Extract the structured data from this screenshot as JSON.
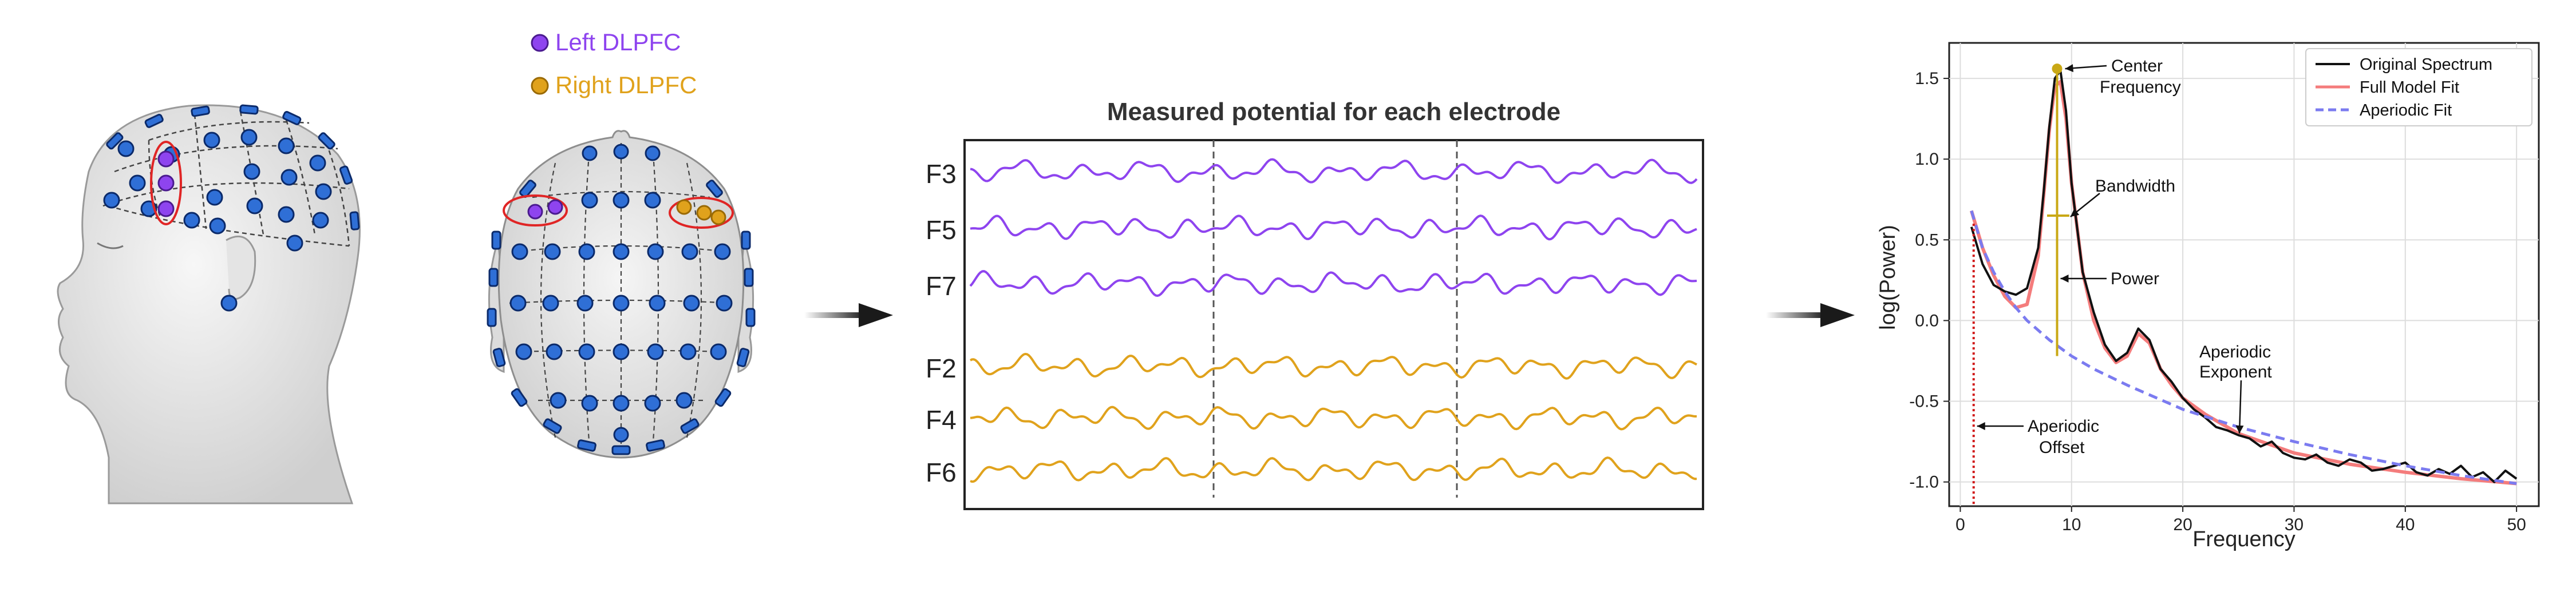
{
  "legend": {
    "left_label": "Left DLPFC",
    "right_label": "Right DLPFC",
    "left_color": "#8e44ef",
    "right_color": "#e0a21c"
  },
  "eeg": {
    "title": "Measured potential for each electrode",
    "channels": [
      {
        "name": "F3",
        "group": "left"
      },
      {
        "name": "F5",
        "group": "left"
      },
      {
        "name": "F7",
        "group": "left"
      },
      {
        "name": "F2",
        "group": "right"
      },
      {
        "name": "F4",
        "group": "right"
      },
      {
        "name": "F6",
        "group": "right"
      }
    ]
  },
  "spectrum": {
    "xlabel": "Frequency",
    "ylabel": "log(Power)",
    "legend": [
      "Original Spectrum",
      "Full Model Fit",
      "Aperiodic Fit"
    ],
    "annotations": {
      "center_frequency": "Center\nFrequency",
      "bandwidth": "Bandwidth",
      "power": "Power",
      "aperiodic_exponent": "Aperiodic\nExponent",
      "aperiodic_offset": "Aperiodic\nOffset"
    }
  },
  "chart_data": {
    "type": "line",
    "xlabel": "Frequency",
    "ylabel": "log(Power)",
    "xlim": [
      -1,
      52
    ],
    "ylim": [
      -1.15,
      1.72
    ],
    "x_ticks": [
      0,
      10,
      20,
      30,
      40,
      50
    ],
    "y_ticks": [
      -1.0,
      -0.5,
      0.0,
      0.5,
      1.0,
      1.5
    ],
    "grid": true,
    "legend_position": "top-right",
    "series": [
      {
        "name": "Original Spectrum",
        "color": "#111111",
        "x": [
          1,
          2,
          3,
          4,
          5,
          6,
          7,
          7.5,
          8,
          8.5,
          9,
          9.5,
          10,
          11,
          12,
          13,
          14,
          15,
          16,
          17,
          18,
          19,
          20,
          21,
          22,
          23,
          24,
          25,
          26,
          27,
          28,
          29,
          30,
          31,
          32,
          33,
          34,
          35,
          36,
          37,
          38,
          39,
          40,
          41,
          42,
          43,
          44,
          45,
          46,
          47,
          48,
          49,
          50
        ],
        "values": [
          0.58,
          0.35,
          0.22,
          0.18,
          0.16,
          0.2,
          0.45,
          0.8,
          1.2,
          1.5,
          1.55,
          1.3,
          0.85,
          0.3,
          0.05,
          -0.15,
          -0.25,
          -0.2,
          -0.05,
          -0.12,
          -0.3,
          -0.38,
          -0.48,
          -0.55,
          -0.6,
          -0.66,
          -0.68,
          -0.71,
          -0.73,
          -0.78,
          -0.75,
          -0.82,
          -0.85,
          -0.86,
          -0.83,
          -0.88,
          -0.9,
          -0.86,
          -0.88,
          -0.93,
          -0.92,
          -0.9,
          -0.88,
          -0.94,
          -0.96,
          -0.92,
          -0.95,
          -0.9,
          -0.97,
          -0.94,
          -1.0,
          -0.93,
          -0.98
        ]
      },
      {
        "name": "Full Model Fit",
        "color": "#f47c7c",
        "x": [
          1,
          2,
          3,
          4,
          5,
          6,
          7,
          7.5,
          8,
          8.5,
          9,
          9.5,
          10,
          11,
          12,
          13,
          14,
          15,
          16,
          17,
          18,
          19,
          20,
          22,
          25,
          30,
          35,
          40,
          45,
          50
        ],
        "values": [
          0.68,
          0.45,
          0.28,
          0.15,
          0.08,
          0.1,
          0.4,
          0.78,
          1.18,
          1.45,
          1.48,
          1.25,
          0.85,
          0.3,
          0.0,
          -0.17,
          -0.26,
          -0.22,
          -0.08,
          -0.14,
          -0.3,
          -0.4,
          -0.48,
          -0.58,
          -0.7,
          -0.82,
          -0.89,
          -0.94,
          -0.98,
          -1.01
        ]
      },
      {
        "name": "Aperiodic Fit",
        "color": "#7b7bf0",
        "x": [
          1,
          2,
          3,
          4,
          5,
          6,
          8,
          10,
          12,
          15,
          20,
          25,
          30,
          35,
          40,
          45,
          50
        ],
        "values": [
          0.68,
          0.45,
          0.3,
          0.18,
          0.08,
          0.0,
          -0.12,
          -0.22,
          -0.3,
          -0.4,
          -0.55,
          -0.66,
          -0.75,
          -0.83,
          -0.9,
          -0.96,
          -1.01
        ]
      }
    ],
    "markers": {
      "center_frequency": {
        "x": 8.7,
        "y": 1.56
      },
      "bandwidth": {
        "x_start": 7.8,
        "x_end": 9.8,
        "y": 0.65
      },
      "power": {
        "x": 8.7,
        "y_start": -0.22,
        "y_end": 1.56
      },
      "aperiodic_offset": {
        "x": 1.2
      }
    }
  }
}
